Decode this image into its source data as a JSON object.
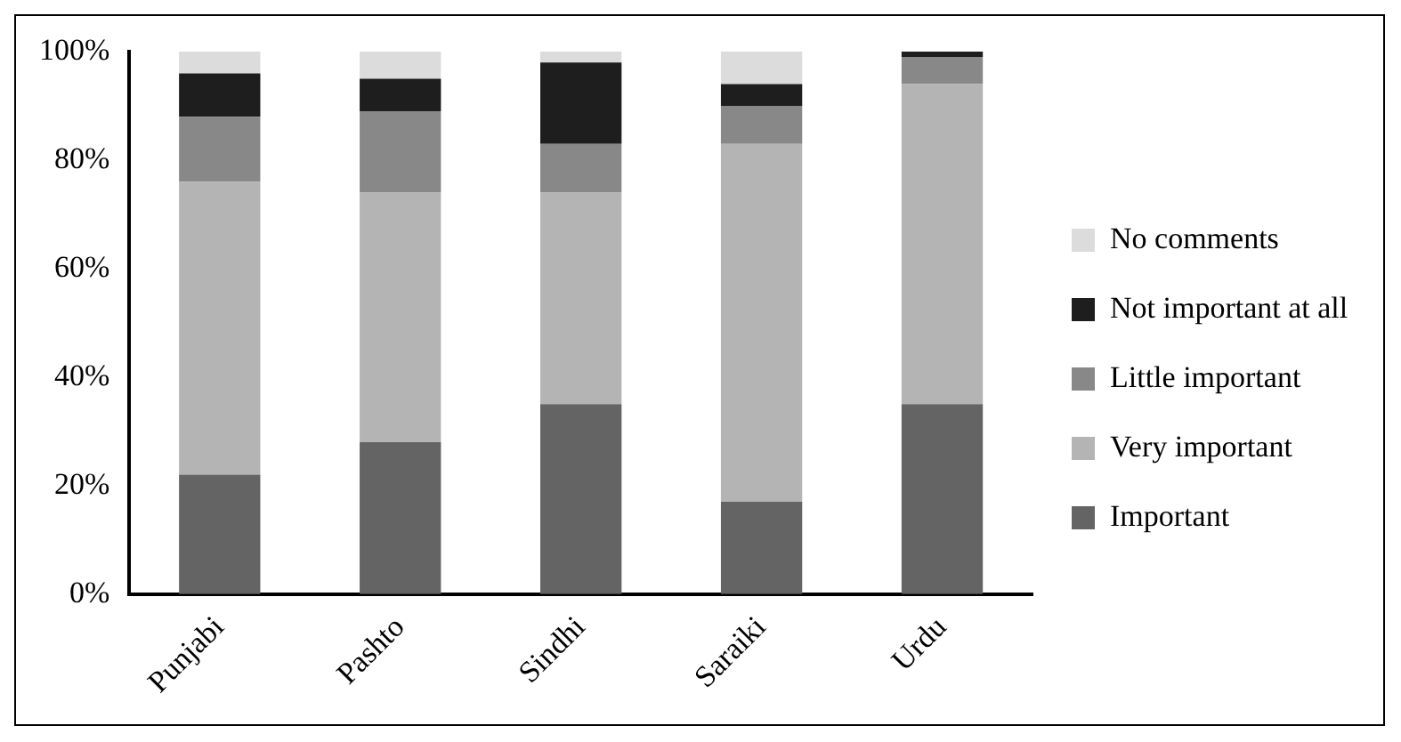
{
  "chart_data": {
    "type": "bar",
    "stacked": true,
    "categories": [
      "Punjabi",
      "Pashto",
      "Sindhi",
      "Saraiki",
      "Urdu"
    ],
    "series": [
      {
        "name": "Important",
        "color": "#646464",
        "values": [
          22,
          28,
          35,
          17,
          35
        ]
      },
      {
        "name": "Very important",
        "color": "#b4b4b4",
        "values": [
          54,
          46,
          39,
          66,
          59
        ]
      },
      {
        "name": "Little important",
        "color": "#888888",
        "values": [
          12,
          15,
          9,
          7,
          5
        ]
      },
      {
        "name": "Not important at all",
        "color": "#1e1e1e",
        "values": [
          8,
          6,
          15,
          4,
          1
        ]
      },
      {
        "name": "No comments",
        "color": "#dcdcdc",
        "values": [
          4,
          5,
          2,
          6,
          0
        ]
      }
    ],
    "ylim": [
      0,
      100
    ],
    "yticks": [
      {
        "value": 0,
        "label": "0%"
      },
      {
        "value": 20,
        "label": "20%"
      },
      {
        "value": 40,
        "label": "40%"
      },
      {
        "value": 60,
        "label": "60%"
      },
      {
        "value": 80,
        "label": "80%"
      },
      {
        "value": 100,
        "label": "100%"
      }
    ],
    "grid": false,
    "legend": "right"
  }
}
